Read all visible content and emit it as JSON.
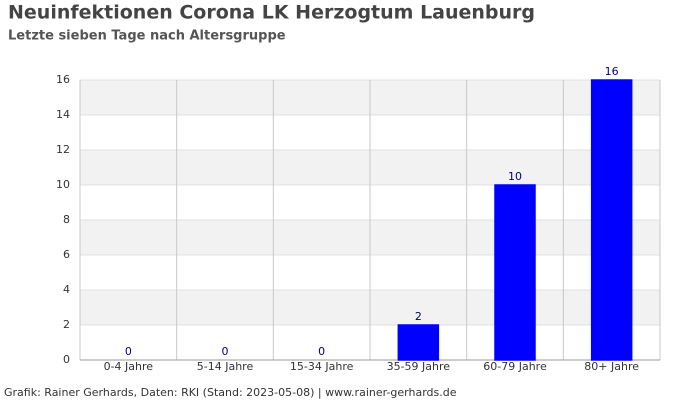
{
  "chart_data": {
    "type": "bar",
    "title": "Neuinfektionen Corona LK Herzogtum Lauenburg",
    "subtitle": "Letzte sieben Tage nach Altersgruppe",
    "categories": [
      "0-4 Jahre",
      "5-14 Jahre",
      "15-34 Jahre",
      "35-59 Jahre",
      "60-79 Jahre",
      "80+ Jahre"
    ],
    "values": [
      0,
      0,
      0,
      2,
      10,
      16
    ],
    "color": "#0000ff",
    "ylim": [
      0,
      16
    ],
    "yticks": [
      0,
      2,
      4,
      6,
      8,
      10,
      12,
      14,
      16
    ],
    "grid": true,
    "source": "Grafik: Rainer Gerhards, Daten: RKI (Stand: 2023-05-08) | www.rainer-gerhards.de"
  }
}
